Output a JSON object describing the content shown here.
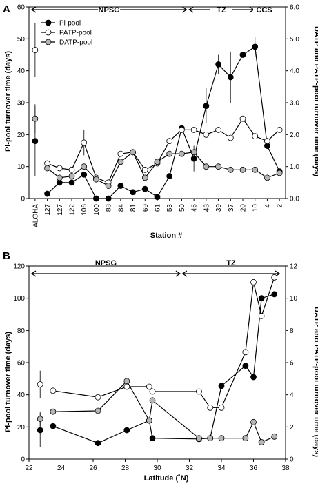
{
  "chart_data": [
    {
      "panel": "A",
      "type": "line",
      "xlabel": "Station #",
      "ylabel": "Pi-pool turnover time (days)",
      "y2label": "DATP and PATP-pool turnover time (days)",
      "ylim": [
        0,
        60
      ],
      "yticks": [
        0,
        10,
        20,
        30,
        40,
        50,
        60
      ],
      "y2lim": [
        0,
        6
      ],
      "y2ticks": [
        "0.0",
        "1.0",
        "2.0",
        "3.0",
        "4.0",
        "5.0",
        "6.0"
      ],
      "categories": [
        "ALOHA",
        "127",
        "127",
        "122",
        "106",
        "100",
        "88",
        "84",
        "81",
        "69",
        "61",
        "53",
        "50",
        "46",
        "43",
        "39",
        "37",
        "20",
        "10",
        "4",
        "2"
      ],
      "regions": [
        {
          "label": "NPSG",
          "from": 0,
          "to": 13
        },
        {
          "label": "TZ",
          "from": 13,
          "to": 18.5
        },
        {
          "label": "CCS",
          "from": 18.5,
          "to": 20
        }
      ],
      "legend": [
        "Pi-pool",
        "PATP-pool",
        "DATP-pool"
      ],
      "series": [
        {
          "name": "Pi-pool",
          "axis": "left",
          "fill": "#000000",
          "values": [
            18,
            1.5,
            5,
            5,
            7.5,
            0,
            0,
            4,
            2,
            3,
            0.5,
            7,
            22,
            12.5,
            29,
            42,
            38,
            45,
            47.5,
            16.5,
            8.5
          ],
          "errors": [
            [
              0,
              11
            ],
            [
              13,
              4
            ],
            [
              14,
              5.5
            ],
            [
              15,
              3
            ],
            [
              16,
              8
            ],
            [
              18,
              3
            ]
          ]
        },
        {
          "name": "PATP-pool",
          "axis": "right",
          "fill": "#ffffff",
          "values": [
            4.65,
            1.1,
            0.95,
            0.9,
            1.75,
            0.65,
            0.5,
            1.4,
            1.45,
            0.9,
            1.1,
            1.8,
            2.15,
            2.15,
            2.0,
            2.15,
            1.9,
            2.5,
            1.95,
            1.8,
            2.15
          ],
          "errors": [
            [
              0,
              0.85
            ],
            [
              4,
              0.4
            ]
          ]
        },
        {
          "name": "DATP-pool",
          "axis": "right",
          "fill": "#b5b5b5",
          "values": [
            2.5,
            0.95,
            0.65,
            0.7,
            1.0,
            0.6,
            0.4,
            1.15,
            1.45,
            0.65,
            1.15,
            1.4,
            1.4,
            1.45,
            1.0,
            1.0,
            0.9,
            0.9,
            0.9,
            0.65,
            0.8
          ],
          "errors": [
            [
              0,
              0.45
            ]
          ]
        }
      ]
    },
    {
      "panel": "B",
      "type": "line",
      "xlabel": "Latitude (˚N)",
      "ylabel": "Pi-pool turnover time (days)",
      "y2label": "DATP and PATP-pool turnover time (days)",
      "xlim": [
        22,
        38
      ],
      "xticks": [
        22,
        24,
        26,
        28,
        30,
        32,
        34,
        36,
        38
      ],
      "ylim": [
        0,
        120
      ],
      "yticks": [
        0,
        20,
        40,
        60,
        80,
        100,
        120
      ],
      "y2lim": [
        0,
        12
      ],
      "y2ticks": [
        0,
        2,
        4,
        6,
        8,
        10,
        12
      ],
      "regions": [
        {
          "label": "NPSG",
          "from": 22,
          "to": 31.5
        },
        {
          "label": "TZ",
          "from": 31.5,
          "to": 37.7
        }
      ],
      "series": [
        {
          "name": "Pi-pool",
          "axis": "left",
          "fill": "#000000",
          "points": [
            [
              23.5,
              20.5
            ],
            [
              26.3,
              10
            ],
            [
              28.1,
              18
            ],
            [
              29.5,
              24
            ],
            [
              29.7,
              13
            ],
            [
              32.6,
              12.5
            ],
            [
              33.3,
              13
            ],
            [
              34.0,
              45.5
            ],
            [
              35.5,
              58
            ],
            [
              36.0,
              51
            ],
            [
              36.5,
              100
            ],
            [
              37.3,
              102.5
            ]
          ],
          "isolated": [
            [
              22.7,
              18,
              10.5
            ]
          ]
        },
        {
          "name": "PATP-pool",
          "axis": "right",
          "fill": "#ffffff",
          "points": [
            [
              23.5,
              4.25
            ],
            [
              26.3,
              3.85
            ],
            [
              28.1,
              4.5
            ],
            [
              29.5,
              4.5
            ],
            [
              29.7,
              4.2
            ],
            [
              32.6,
              4.2
            ],
            [
              33.3,
              3.2
            ],
            [
              34.0,
              3.2
            ],
            [
              35.5,
              6.65
            ],
            [
              36.0,
              11.0
            ],
            [
              36.5,
              8.9
            ],
            [
              37.3,
              11.3
            ]
          ],
          "isolated": [
            [
              22.7,
              4.65,
              0.85
            ]
          ]
        },
        {
          "name": "DATP-pool",
          "axis": "right",
          "fill": "#b5b5b5",
          "points": [
            [
              23.5,
              2.95
            ],
            [
              26.3,
              3.0
            ],
            [
              28.1,
              4.85
            ],
            [
              29.5,
              2.4
            ],
            [
              29.7,
              3.65
            ],
            [
              32.6,
              1.3
            ],
            [
              33.3,
              1.3
            ],
            [
              34.0,
              1.3
            ],
            [
              35.5,
              1.3
            ],
            [
              36.0,
              2.3
            ],
            [
              36.5,
              1.05
            ],
            [
              37.3,
              1.4
            ]
          ],
          "isolated": [
            [
              22.7,
              2.5,
              0.45
            ]
          ]
        }
      ]
    }
  ]
}
